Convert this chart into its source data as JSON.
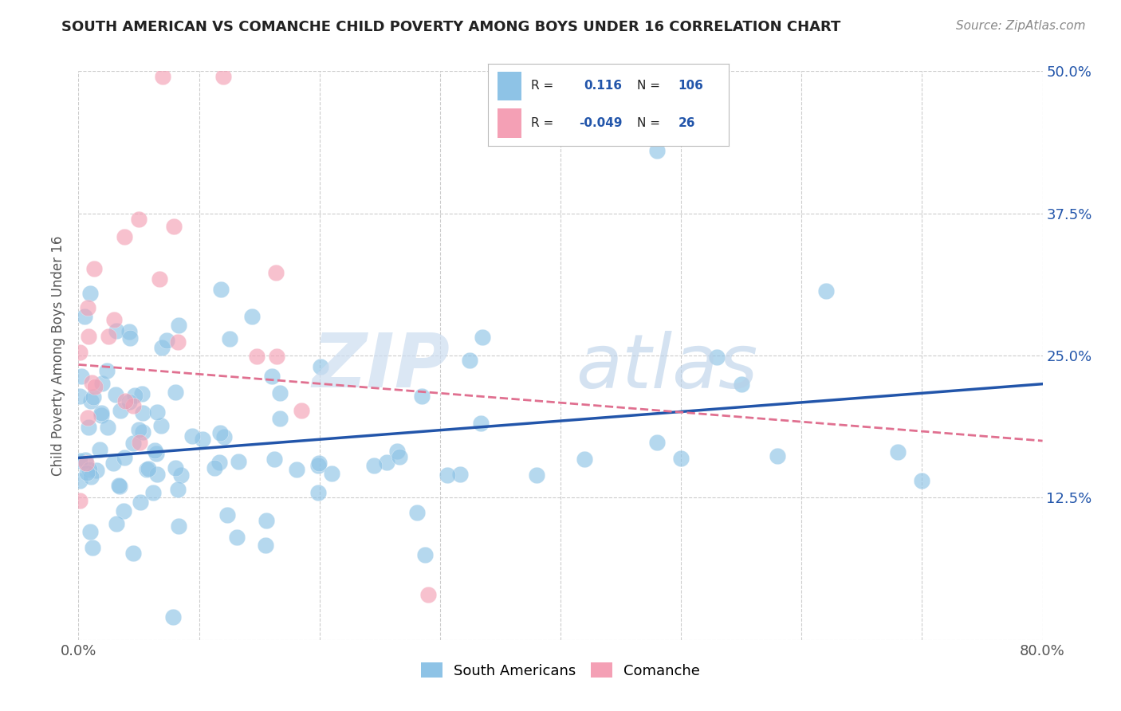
{
  "title": "SOUTH AMERICAN VS COMANCHE CHILD POVERTY AMONG BOYS UNDER 16 CORRELATION CHART",
  "source": "Source: ZipAtlas.com",
  "ylabel": "Child Poverty Among Boys Under 16",
  "xlim": [
    0.0,
    0.8
  ],
  "ylim": [
    0.0,
    0.5
  ],
  "xtick_positions": [
    0.0,
    0.1,
    0.2,
    0.3,
    0.4,
    0.5,
    0.6,
    0.7,
    0.8
  ],
  "xticklabels": [
    "0.0%",
    "",
    "",
    "",
    "",
    "",
    "",
    "",
    "80.0%"
  ],
  "ytick_positions": [
    0.0,
    0.125,
    0.25,
    0.375,
    0.5
  ],
  "yticklabels_right": [
    "",
    "12.5%",
    "25.0%",
    "37.5%",
    "50.0%"
  ],
  "blue_color": "#8ec3e6",
  "pink_color": "#f4a0b5",
  "blue_line_color": "#2255aa",
  "pink_line_color": "#e07090",
  "south_americans_label": "South Americans",
  "comanche_label": "Comanche",
  "blue_R": 0.116,
  "blue_N": 106,
  "pink_R": -0.049,
  "pink_N": 26,
  "blue_line_x0": 0.0,
  "blue_line_y0": 0.16,
  "blue_line_x1": 0.8,
  "blue_line_y1": 0.225,
  "pink_line_x0": 0.0,
  "pink_line_y0": 0.242,
  "pink_line_x1": 0.8,
  "pink_line_y1": 0.175,
  "watermark_color": "#ccddf0"
}
